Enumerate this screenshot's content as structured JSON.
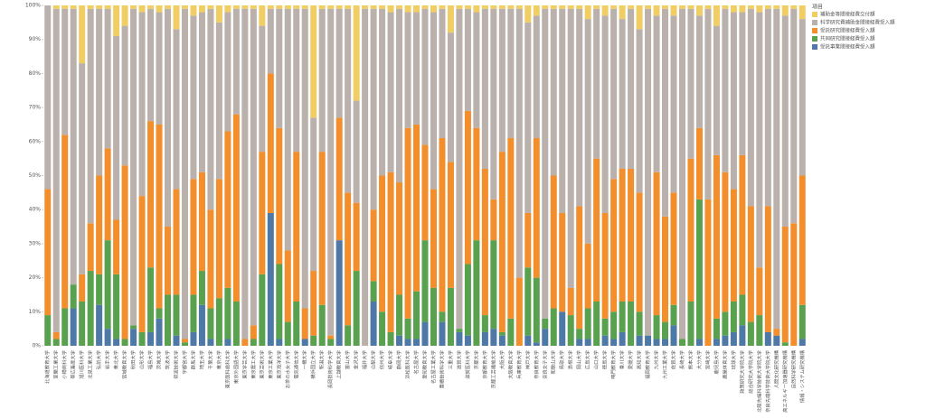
{
  "chart_data": {
    "type": "stacked_bar_100",
    "legend_title": "項目",
    "legend_position": "right",
    "categories": [
      "北海道教育大学",
      "室蘭工業大学",
      "小樽商科大学",
      "帯広畜産大学",
      "旭川医科大学",
      "北見工業大学",
      "弘前大学",
      "岩手大学",
      "東北大学",
      "宮城教育大学",
      "秋田大学",
      "山形大学",
      "福島大学",
      "茨城大学",
      "筑波大学",
      "筑波技術大学",
      "宇都宮大学",
      "群馬大学",
      "埼玉大学",
      "千葉大学",
      "東京大学",
      "東京医科歯科大学",
      "東京外国語大学",
      "東京学芸大学",
      "東京農工大学",
      "東京芸術大学",
      "東京工業大学",
      "東京海洋大学",
      "お茶の水女子大学",
      "電気通信大学",
      "一橋大学",
      "横浜国立大学",
      "新潟大学",
      "長岡技術科学大学",
      "上越教育大学",
      "富山大学",
      "金沢大学",
      "福井大学",
      "山梨大学",
      "信州大学",
      "岐阜大学",
      "静岡大学",
      "浜松医科大学",
      "名古屋大学",
      "愛知教育大学",
      "名古屋工業大学",
      "豊橋技術科学大学",
      "三重大学",
      "滋賀大学",
      "滋賀医科大学",
      "京都大学",
      "京都教育大学",
      "京都工芸繊維大学",
      "大阪大学",
      "大阪教育大学",
      "兵庫教育大学",
      "神戸大学",
      "奈良教育大学",
      "奈良女子大学",
      "和歌山大学",
      "鳥取大学",
      "島根大学",
      "岡山大学",
      "広島大学",
      "山口大学",
      "徳島大学",
      "鳴門教育大学",
      "香川大学",
      "愛媛大学",
      "高知大学",
      "福岡教育大学",
      "九州大学",
      "九州工業大学",
      "佐賀大学",
      "長崎大学",
      "熊本大学",
      "大分大学",
      "宮崎大学",
      "鹿児島大学",
      "鹿屋体育大学",
      "琉球大学",
      "政策研究大学院大学",
      "総合研究大学院大学",
      "北陸先端科学技術大学院大学",
      "奈良先端科学技術大学院大学",
      "人間文化研究機構",
      "高エネルギー加速器研究機構",
      "自然科学研究機構",
      "情報・システム研究機構"
    ],
    "series": [
      {
        "name": "補助金等間接経費交付額",
        "color": "#f1ce63",
        "values": [
          0,
          1,
          1,
          1,
          17,
          1,
          1,
          1,
          9,
          6,
          1,
          2,
          1,
          2,
          1,
          7,
          1,
          3,
          2,
          1,
          5,
          2,
          1,
          1,
          1,
          6,
          1,
          1,
          1,
          1,
          1,
          33,
          1,
          1,
          1,
          1,
          28,
          1,
          1,
          1,
          2,
          1,
          2,
          2,
          1,
          2,
          1,
          8,
          1,
          1,
          2,
          1,
          1,
          1,
          1,
          1,
          5,
          3,
          1,
          1,
          1,
          1,
          1,
          4,
          1,
          3,
          1,
          4,
          1,
          7,
          1,
          3,
          1,
          3,
          1,
          1,
          3,
          1,
          6,
          1,
          2,
          2,
          1,
          2,
          1,
          1,
          3,
          1,
          4
        ]
      },
      {
        "name": "科学研究費補助金間接経費受入額",
        "color": "#bab0ac",
        "values": [
          54,
          95,
          37,
          81,
          62,
          63,
          49,
          41,
          54,
          41,
          93,
          54,
          33,
          33,
          64,
          47,
          97,
          48,
          47,
          59,
          46,
          35,
          31,
          97,
          93,
          37,
          19,
          35,
          71,
          42,
          88,
          45,
          42,
          96,
          32,
          54,
          30,
          99,
          59,
          49,
          47,
          51,
          34,
          33,
          40,
          52,
          38,
          38,
          94,
          30,
          34,
          47,
          56,
          42,
          38,
          79,
          56,
          36,
          91,
          49,
          60,
          82,
          58,
          66,
          44,
          58,
          50,
          44,
          47,
          48,
          96,
          46,
          61,
          52,
          97,
          44,
          33,
          56,
          38,
          48,
          52,
          42,
          58,
          75,
          58,
          94,
          62,
          63,
          46
        ]
      },
      {
        "name": "受託研究間接経費受入額",
        "color": "#f28e2b",
        "values": [
          37,
          2,
          51,
          0,
          8,
          14,
          29,
          27,
          16,
          51,
          0,
          40,
          43,
          54,
          20,
          31,
          1,
          34,
          29,
          29,
          35,
          46,
          55,
          2,
          4,
          36,
          41,
          40,
          21,
          44,
          9,
          19,
          45,
          1,
          36,
          39,
          20,
          0,
          21,
          40,
          47,
          33,
          56,
          49,
          28,
          29,
          51,
          37,
          0,
          45,
          33,
          43,
          12,
          53,
          53,
          20,
          16,
          41,
          0,
          39,
          29,
          8,
          36,
          19,
          42,
          31,
          39,
          39,
          39,
          35,
          0,
          42,
          31,
          33,
          0,
          42,
          21,
          43,
          48,
          41,
          33,
          41,
          34,
          14,
          37,
          2,
          34,
          36,
          38
        ]
      },
      {
        "name": "共同研究間接経費受入額",
        "color": "#59a14f",
        "values": [
          9,
          2,
          11,
          7,
          13,
          22,
          9,
          26,
          19,
          2,
          1,
          4,
          19,
          3,
          15,
          12,
          1,
          11,
          10,
          9,
          14,
          15,
          13,
          0,
          2,
          21,
          0,
          22,
          7,
          13,
          0,
          3,
          12,
          2,
          0,
          6,
          22,
          0,
          6,
          10,
          4,
          12,
          6,
          14,
          24,
          17,
          3,
          17,
          1,
          21,
          31,
          5,
          26,
          1,
          8,
          0,
          20,
          19,
          3,
          11,
          0,
          9,
          3,
          9,
          13,
          5,
          8,
          9,
          13,
          7,
          0,
          7,
          5,
          6,
          2,
          13,
          41,
          0,
          6,
          7,
          9,
          9,
          7,
          9,
          0,
          0,
          1,
          0,
          10
        ]
      },
      {
        "name": "受託事業間接経費受入額",
        "color": "#4e79a7",
        "values": [
          0,
          0,
          0,
          11,
          0,
          0,
          12,
          5,
          2,
          0,
          5,
          0,
          4,
          8,
          0,
          3,
          0,
          4,
          12,
          2,
          0,
          2,
          0,
          0,
          0,
          0,
          39,
          2,
          0,
          0,
          2,
          0,
          0,
          0,
          31,
          0,
          0,
          0,
          13,
          0,
          0,
          3,
          2,
          2,
          7,
          0,
          7,
          0,
          4,
          3,
          0,
          4,
          5,
          3,
          0,
          0,
          3,
          1,
          5,
          0,
          10,
          0,
          2,
          2,
          0,
          3,
          2,
          4,
          0,
          3,
          3,
          2,
          2,
          6,
          0,
          0,
          2,
          0,
          2,
          3,
          4,
          6,
          0,
          0,
          4,
          3,
          0,
          0,
          2
        ]
      }
    ],
    "ylim": [
      0,
      100
    ],
    "yticks": [
      {
        "value": 0,
        "label": "0%"
      },
      {
        "value": 10,
        "label": "10%"
      },
      {
        "value": 20,
        "label": "20%"
      },
      {
        "value": 30,
        "label": "30%"
      },
      {
        "value": 40,
        "label": "40%"
      },
      {
        "value": 50,
        "label": "50%"
      },
      {
        "value": 60,
        "label": "60%"
      },
      {
        "value": 70,
        "label": "70%"
      },
      {
        "value": 80,
        "label": "80%"
      },
      {
        "value": 90,
        "label": "90%"
      },
      {
        "value": 100,
        "label": "100%"
      }
    ]
  }
}
